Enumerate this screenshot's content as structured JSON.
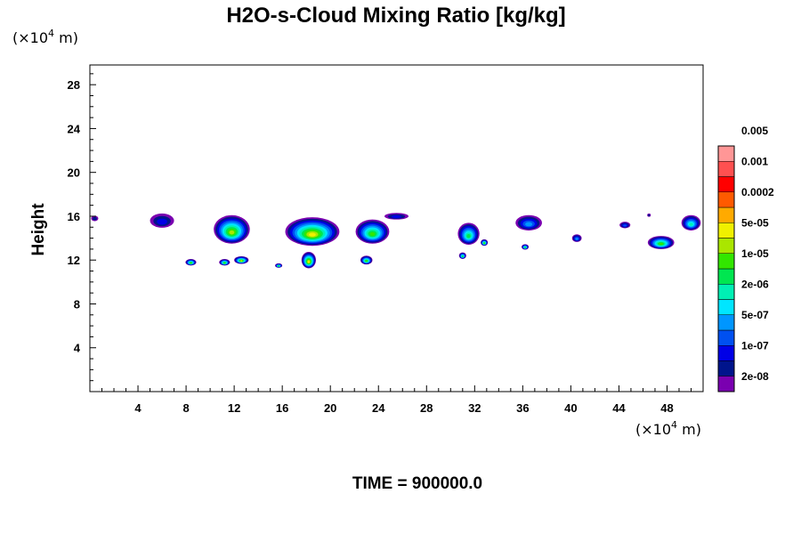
{
  "chart_data": {
    "type": "heatmap",
    "title": "H2O-s-Cloud Mixing Ratio [kg/kg]",
    "ylabel": "Height",
    "x_unit_prefix": "(×10",
    "x_unit_exp": "4",
    "x_unit_suffix": " m)",
    "y_unit_prefix": "(×10",
    "y_unit_exp": "4",
    "y_unit_suffix": " m)",
    "xlim": [
      0,
      51
    ],
    "ylim": [
      0,
      29.8
    ],
    "x_ticks": [
      "4",
      "8",
      "12",
      "16",
      "20",
      "24",
      "28",
      "32",
      "36",
      "40",
      "44",
      "48"
    ],
    "y_ticks": [
      "4",
      "8",
      "12",
      "16",
      "20",
      "24",
      "28"
    ],
    "colorbar": {
      "colors": [
        "#7a00b0",
        "#00148c",
        "#0000e6",
        "#0050f0",
        "#0096ff",
        "#00e6ff",
        "#00f0b4",
        "#00e650",
        "#32e600",
        "#aae600",
        "#f0f000",
        "#ffaa00",
        "#ff5a00",
        "#ff0000",
        "#ff5050",
        "#ff9696"
      ],
      "labels": [
        "2e-08",
        "1e-07",
        "5e-07",
        "2e-06",
        "1e-05",
        "5e-05",
        "0.0002",
        "0.001",
        "0.005"
      ]
    },
    "clouds": [
      {
        "x": 0.4,
        "y": 15.8,
        "w": 0.6,
        "h": 0.5,
        "top": 1
      },
      {
        "x": 6.0,
        "y": 15.6,
        "w": 2.0,
        "h": 1.3,
        "top": 2
      },
      {
        "x": 11.8,
        "y": 14.8,
        "w": 3.0,
        "h": 2.6,
        "top": 9
      },
      {
        "x": 18.5,
        "y": 14.6,
        "w": 4.5,
        "h": 2.6,
        "top": 10
      },
      {
        "x": 23.5,
        "y": 14.6,
        "w": 2.8,
        "h": 2.2,
        "top": 8
      },
      {
        "x": 25.5,
        "y": 16.0,
        "w": 2.0,
        "h": 0.6,
        "top": 2
      },
      {
        "x": 31.5,
        "y": 14.4,
        "w": 1.8,
        "h": 2.0,
        "top": 7
      },
      {
        "x": 36.5,
        "y": 15.4,
        "w": 2.2,
        "h": 1.4,
        "top": 4
      },
      {
        "x": 40.5,
        "y": 14.0,
        "w": 0.8,
        "h": 0.7,
        "top": 4
      },
      {
        "x": 44.5,
        "y": 15.2,
        "w": 0.9,
        "h": 0.6,
        "top": 3
      },
      {
        "x": 50.0,
        "y": 15.4,
        "w": 1.6,
        "h": 1.4,
        "top": 6
      },
      {
        "x": 47.5,
        "y": 13.6,
        "w": 2.2,
        "h": 1.2,
        "top": 8
      },
      {
        "x": 46.5,
        "y": 16.1,
        "w": 0.3,
        "h": 0.3,
        "top": 1
      },
      {
        "x": 8.4,
        "y": 11.8,
        "w": 0.9,
        "h": 0.6,
        "top": 8
      },
      {
        "x": 11.2,
        "y": 11.8,
        "w": 0.9,
        "h": 0.6,
        "top": 8
      },
      {
        "x": 12.6,
        "y": 12.0,
        "w": 1.2,
        "h": 0.7,
        "top": 9
      },
      {
        "x": 15.7,
        "y": 11.5,
        "w": 0.6,
        "h": 0.4,
        "top": 7
      },
      {
        "x": 18.2,
        "y": 12.0,
        "w": 1.2,
        "h": 1.5,
        "top": 10
      },
      {
        "x": 23.0,
        "y": 12.0,
        "w": 1.0,
        "h": 0.8,
        "top": 8
      },
      {
        "x": 31.0,
        "y": 12.4,
        "w": 0.6,
        "h": 0.6,
        "top": 7
      },
      {
        "x": 32.8,
        "y": 13.6,
        "w": 0.6,
        "h": 0.6,
        "top": 8
      },
      {
        "x": 36.2,
        "y": 13.2,
        "w": 0.6,
        "h": 0.5,
        "top": 7
      }
    ]
  },
  "footer": {
    "time_label": "TIME = 900000.0"
  }
}
